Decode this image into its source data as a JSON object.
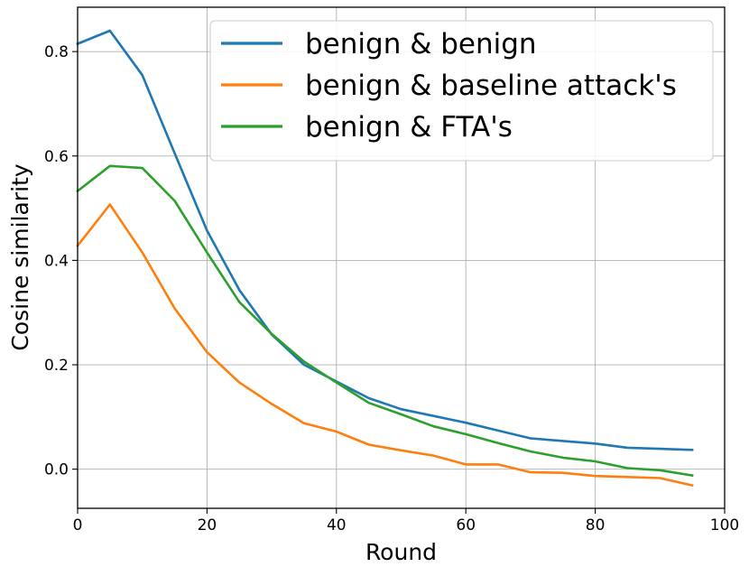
{
  "chart_data": {
    "type": "line",
    "xlabel": "Round",
    "ylabel": "Cosine similarity",
    "xlim": [
      0,
      100
    ],
    "ylim": [
      -0.075,
      0.885
    ],
    "x_ticks": [
      "0",
      "20",
      "40",
      "60",
      "80",
      "100"
    ],
    "x_tick_values": [
      0,
      20,
      40,
      60,
      80,
      100
    ],
    "y_ticks": [
      "0.0",
      "0.2",
      "0.4",
      "0.6",
      "0.8"
    ],
    "y_tick_values": [
      0.0,
      0.2,
      0.4,
      0.6,
      0.8
    ],
    "grid": true,
    "legend_position": "top-right",
    "x": [
      0,
      5,
      10,
      15,
      20,
      25,
      30,
      35,
      40,
      45,
      50,
      55,
      60,
      65,
      70,
      75,
      80,
      85,
      90,
      95
    ],
    "series": [
      {
        "name": "benign & benign",
        "color": "#1f77b4",
        "values": [
          0.815,
          0.84,
          0.755,
          0.605,
          0.457,
          0.343,
          0.258,
          0.2,
          0.168,
          0.136,
          0.115,
          0.102,
          0.089,
          0.074,
          0.059,
          0.054,
          0.049,
          0.041,
          0.039,
          0.037
        ]
      },
      {
        "name": "benign & baseline attack's",
        "color": "#ff7f0e",
        "values": [
          0.428,
          0.507,
          0.415,
          0.308,
          0.224,
          0.166,
          0.125,
          0.088,
          0.072,
          0.047,
          0.036,
          0.026,
          0.009,
          0.009,
          -0.006,
          -0.007,
          -0.013,
          -0.015,
          -0.017,
          -0.031
        ]
      },
      {
        "name": "benign & FTA's",
        "color": "#2ca02c",
        "values": [
          0.533,
          0.581,
          0.577,
          0.514,
          0.415,
          0.32,
          0.259,
          0.206,
          0.166,
          0.127,
          0.105,
          0.082,
          0.067,
          0.05,
          0.034,
          0.022,
          0.015,
          0.002,
          -0.002,
          -0.012
        ]
      }
    ]
  }
}
